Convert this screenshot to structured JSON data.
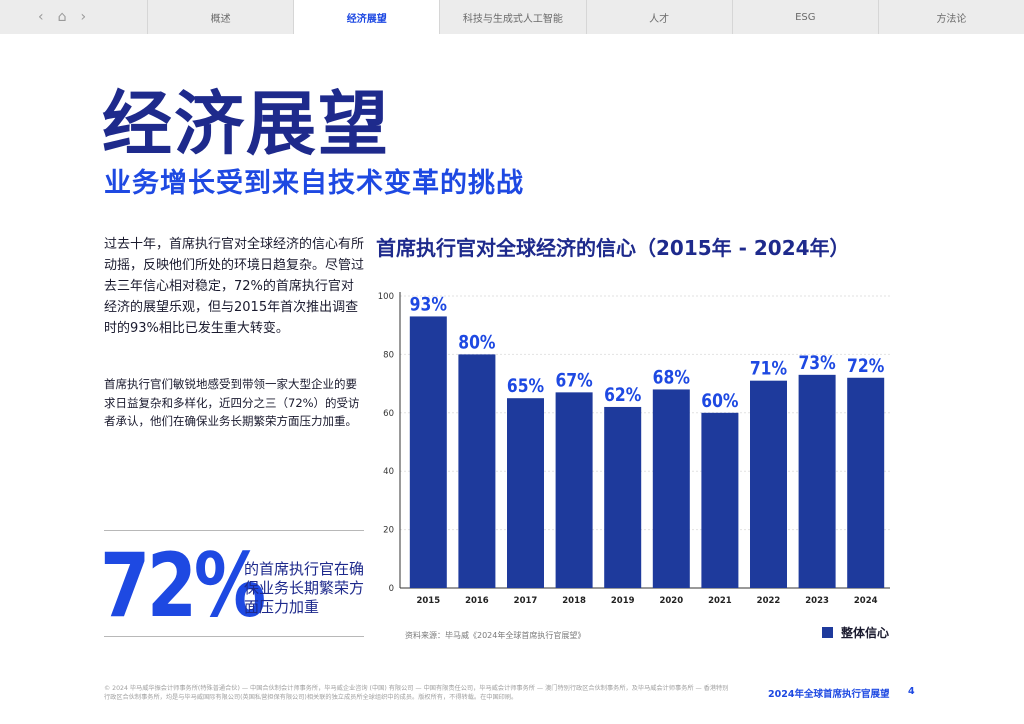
{
  "nav": {
    "back_icon": "‹",
    "home_icon": "⌂",
    "forward_icon": "›",
    "tabs": [
      "概述",
      "经济展望",
      "科技与生成式人工智能",
      "人才",
      "ESG",
      "方法论"
    ],
    "active_tab": 1
  },
  "page": {
    "title": "经济展望",
    "subtitle": "业务增长受到来自技术变革的挑战",
    "intro": "过去十年，首席执行官对全球经济的信心有所动摇，反映他们所处的环境日趋复杂。尽管过去三年信心相对稳定，72%的首席执行官对经济的展望乐观，但与2015年首次推出调查时的93%相比已发生重大转变。",
    "paragraph2": "首席执行官们敏锐地感受到带领一家大型企业的要求日益复杂和多样化，近四分之三（72%）的受访者承认，他们在确保业务长期繁荣方面压力加重。",
    "stat_value": "72%",
    "stat_description": "的首席执行官在确保业务长期繁荣方面压力加重"
  },
  "chart_data": {
    "type": "bar",
    "title": "首席执行官对全球经济的信心（2015年 - 2024年）",
    "categories": [
      "2015",
      "2016",
      "2017",
      "2018",
      "2019",
      "2020",
      "2021",
      "2022",
      "2023",
      "2024"
    ],
    "series": [
      {
        "name": "整体信心",
        "values": [
          93,
          80,
          65,
          67,
          62,
          68,
          60,
          71,
          73,
          72
        ]
      }
    ],
    "data_labels": [
      "93%",
      "80%",
      "65%",
      "67%",
      "62%",
      "68%",
      "60%",
      "71%",
      "73%",
      "72%"
    ],
    "yticks": [
      0,
      20,
      40,
      60,
      80,
      100
    ],
    "ylim": [
      0,
      100
    ],
    "xlabel": "",
    "ylabel": "",
    "grid": true,
    "legend": "bottom-right",
    "bar_color": "#1e3a9c",
    "label_color": "#1e49e2",
    "source": "资料来源：毕马威《2024年全球首席执行官展望》"
  },
  "footer": {
    "legal": "© 2024 毕马威华振会计师事务所(特殊普通合伙) — 中国合伙制会计师事务所，毕马威企业咨询 (中国) 有限公司 — 中国有限责任公司，毕马威会计师事务所 — 澳门特别行政区合伙制事务所，及毕马威会计师事务所 — 香港特别行政区合伙制事务所，均是与毕马威国际有限公司(英国私营担保有限公司)相关联的独立成员所全球组织中的成员。版权所有，不得转载。在中国印刷。",
    "report_title": "2024年全球首席执行官展望",
    "page_number": "4"
  },
  "colors": {
    "primary_dark": "#1e2a8c",
    "accent_blue": "#1e49e2",
    "bar_blue": "#1e3a9c"
  }
}
